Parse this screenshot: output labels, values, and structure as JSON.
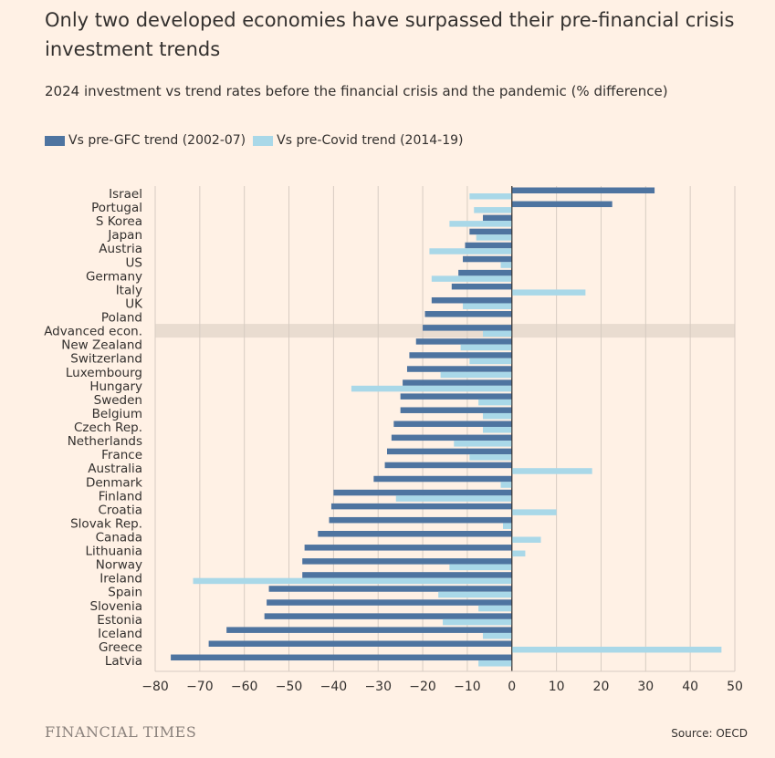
{
  "title": "Only two developed economies have surpassed their pre-financial crisis investment trends",
  "subtitle": "2024 investment vs trend rates before the financial crisis and the pandemic (% difference)",
  "brand": "FINANCIAL TIMES",
  "source": "Source: OECD",
  "colors": {
    "gfc": "#4E74A0",
    "covid": "#A9D8E8",
    "highlight": "#E9DCD0",
    "grid": "#D7CCC2",
    "zero": "#33302E"
  },
  "chart_data": {
    "type": "bar",
    "orientation": "horizontal",
    "title": "Only two developed economies have surpassed their pre-financial crisis investment trends",
    "subtitle": "2024 investment vs trend rates before the financial crisis and the pandemic (% difference)",
    "xlim": [
      -80,
      50
    ],
    "xticks": [
      -80,
      -70,
      -60,
      -50,
      -40,
      -30,
      -20,
      -10,
      0,
      10,
      20,
      30,
      40,
      50
    ],
    "highlight_category": "Advanced econ.",
    "categories": [
      "Israel",
      "Portugal",
      "S Korea",
      "Japan",
      "Austria",
      "US",
      "Germany",
      "Italy",
      "UK",
      "Poland",
      "Advanced econ.",
      "New Zealand",
      "Switzerland",
      "Luxembourg",
      "Hungary",
      "Sweden",
      "Belgium",
      "Czech Rep.",
      "Netherlands",
      "France",
      "Australia",
      "Denmark",
      "Finland",
      "Croatia",
      "Slovak Rep.",
      "Canada",
      "Lithuania",
      "Norway",
      "Ireland",
      "Spain",
      "Slovenia",
      "Estonia",
      "Iceland",
      "Greece",
      "Latvia"
    ],
    "series": [
      {
        "name": "Vs pre-GFC trend (2002-07)",
        "values": [
          32,
          22.5,
          -6.5,
          -9.5,
          -10.5,
          -11,
          -12,
          -13.5,
          -18,
          -19.5,
          -20,
          -21.5,
          -23,
          -23.5,
          -24.5,
          -25,
          -25,
          -26.5,
          -27,
          -28,
          -28.5,
          -31,
          -40,
          -40.5,
          -41,
          -43.5,
          -46.5,
          -47,
          -47,
          -54.5,
          -55,
          -55.5,
          -64,
          -68,
          -76.5
        ]
      },
      {
        "name": "Vs pre-Covid trend (2014-19)",
        "values": [
          -9.5,
          -8.5,
          -14,
          -8,
          -18.5,
          -2.5,
          -18,
          16.5,
          -11,
          0,
          -6.5,
          -11.5,
          -9.5,
          -16,
          -36,
          -7.5,
          -6.5,
          -6.5,
          -13,
          -9.5,
          18,
          -2.5,
          -26,
          10,
          -2,
          6.5,
          3,
          -14,
          -71.5,
          -16.5,
          -7.5,
          -15.5,
          -6.5,
          47,
          -7.5
        ]
      }
    ]
  }
}
